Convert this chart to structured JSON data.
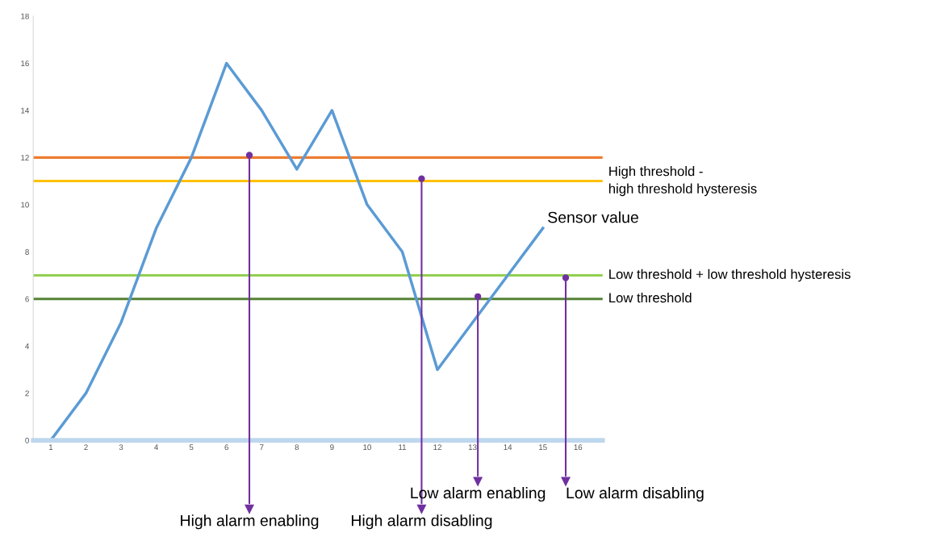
{
  "chart_data": {
    "type": "line",
    "x": [
      1,
      2,
      3,
      4,
      5,
      6,
      7,
      8,
      9,
      10,
      11,
      12,
      13,
      14,
      15
    ],
    "series": [
      {
        "name": "Sensor value",
        "color": "#5b9bd5",
        "values": [
          0,
          2,
          5,
          9,
          12,
          16,
          14,
          11.5,
          14,
          10,
          8,
          3,
          5,
          7,
          9
        ]
      }
    ],
    "xlim": [
      0.5,
      16.7
    ],
    "xticks": [
      1,
      2,
      3,
      4,
      5,
      6,
      7,
      8,
      9,
      10,
      11,
      12,
      13,
      14,
      15,
      16
    ],
    "ylim": [
      0,
      18
    ],
    "yticks": [
      0,
      2,
      4,
      6,
      8,
      10,
      12,
      14,
      16,
      18
    ],
    "grid": false,
    "legend": false,
    "marker": "none",
    "line_style": "solid",
    "ref_lines": [
      {
        "axis": "y",
        "value": 12,
        "label": null,
        "color": "#ed7d31"
      },
      {
        "axis": "y",
        "value": 11,
        "label": "High threshold -\nhigh threshold hysteresis",
        "color": "#ffc000"
      },
      {
        "axis": "y",
        "value": 7,
        "label": "Low threshold + low threshold hysteresis",
        "color": "#92d050"
      },
      {
        "axis": "y",
        "value": 6,
        "label": "Low threshold",
        "color": "#548235"
      }
    ],
    "annotations": [
      {
        "text": "High alarm enabling",
        "x": 6.65,
        "y": 12.1
      },
      {
        "text": "High alarm disabling",
        "x": 11.55,
        "y": 11.1
      },
      {
        "text": "Low alarm enabling",
        "x": 13.15,
        "y": 6.1
      },
      {
        "text": "Low alarm disabling",
        "x": 15.65,
        "y": 6.9
      }
    ]
  }
}
